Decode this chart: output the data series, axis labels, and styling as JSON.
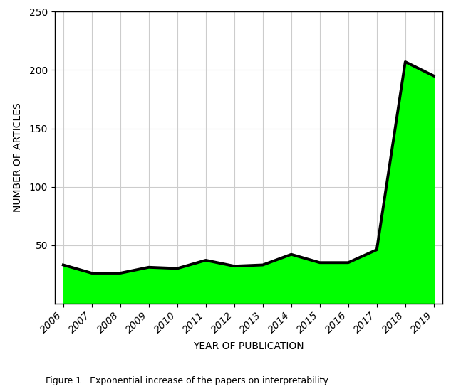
{
  "years": [
    2006,
    2007,
    2008,
    2009,
    2010,
    2011,
    2012,
    2013,
    2014,
    2015,
    2016,
    2017,
    2018,
    2019
  ],
  "values": [
    33,
    26,
    26,
    31,
    30,
    37,
    32,
    33,
    42,
    35,
    35,
    46,
    207,
    195
  ],
  "fill_color": "#00ff00",
  "line_color": "#000000",
  "line_width": 2.8,
  "xlabel": "YEAR OF PUBLICATION",
  "ylabel": "NUMBER OF ARTICLES",
  "ylim": [
    0,
    250
  ],
  "yticks": [
    50,
    100,
    150,
    200,
    250
  ],
  "grid_color": "#cccccc",
  "background_color": "#ffffff",
  "caption": "Figure 1.  Exponential increase of the papers on interpretability"
}
